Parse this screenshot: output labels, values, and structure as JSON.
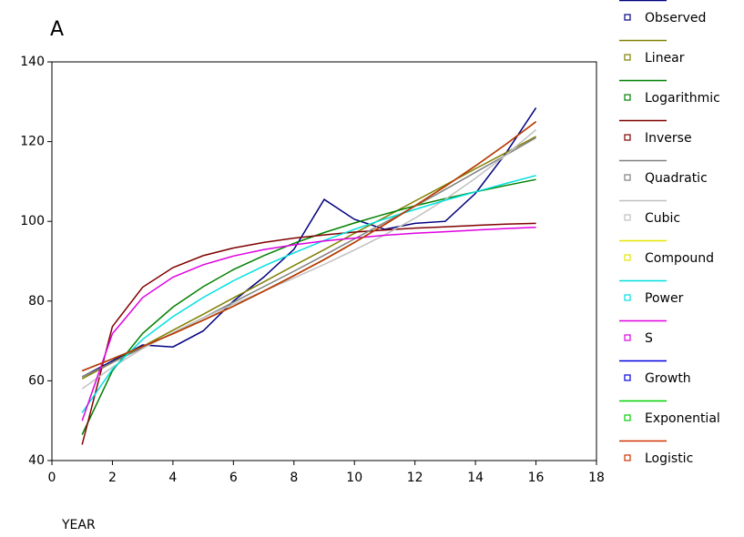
{
  "chart_data": {
    "type": "line",
    "title": "A",
    "x_label": "YEAR",
    "x": [
      1,
      2,
      3,
      4,
      5,
      6,
      7,
      8,
      9,
      10,
      11,
      12,
      13,
      14,
      15,
      16
    ],
    "xlim": [
      0,
      18
    ],
    "xticks": [
      0,
      2,
      4,
      6,
      8,
      10,
      12,
      14,
      16,
      18
    ],
    "ylim": [
      40,
      140
    ],
    "yticks": [
      40,
      60,
      80,
      100,
      120,
      140
    ],
    "series": [
      {
        "name": "Observed",
        "color": "#000080",
        "values": [
          61,
          65,
          69,
          68.5,
          72.5,
          80,
          86,
          93,
          105.5,
          100.5,
          98,
          99.5,
          100,
          107,
          117,
          128.5
        ]
      },
      {
        "name": "Linear",
        "color": "#808000",
        "values": [
          60.5,
          64.6,
          68.6,
          72.7,
          76.7,
          80.8,
          84.8,
          88.9,
          92.9,
          97.0,
          101.0,
          105.1,
          109.1,
          113.2,
          117.2,
          121.3
        ]
      },
      {
        "name": "Logarithmic",
        "color": "#008000",
        "values": [
          46.5,
          62.5,
          71.9,
          78.5,
          83.6,
          87.9,
          91.4,
          94.5,
          97.2,
          99.6,
          101.8,
          103.9,
          105.7,
          107.4,
          109.0,
          110.5
        ]
      },
      {
        "name": "Inverse",
        "color": "#800000",
        "values": [
          44.0,
          73.6,
          83.5,
          88.4,
          91.4,
          93.3,
          94.7,
          95.8,
          96.6,
          97.3,
          97.8,
          98.3,
          98.6,
          99.0,
          99.3,
          99.5
        ]
      },
      {
        "name": "Quadratic",
        "color": "#808080",
        "values": [
          61.0,
          64.6,
          68.3,
          72.0,
          75.8,
          79.7,
          83.6,
          87.5,
          91.5,
          95.6,
          99.7,
          103.8,
          108.0,
          112.3,
          116.6,
          121.0
        ]
      },
      {
        "name": "Cubic",
        "color": "#c0c0c0",
        "values": [
          58.0,
          63.4,
          68.1,
          72.1,
          75.8,
          79.2,
          82.5,
          85.8,
          89.2,
          92.8,
          96.6,
          100.8,
          105.5,
          110.8,
          116.6,
          123.0
        ]
      },
      {
        "name": "Compound",
        "color": "#e6e600",
        "values": [
          62.5,
          65.5,
          68.6,
          71.8,
          75.2,
          78.7,
          82.5,
          86.4,
          90.4,
          94.7,
          99.2,
          103.9,
          108.8,
          113.9,
          119.3,
          125.0
        ]
      },
      {
        "name": "Power",
        "color": "#00e0e0",
        "values": [
          52.0,
          62.9,
          70.4,
          76.1,
          80.9,
          85.1,
          88.8,
          92.1,
          95.2,
          98.0,
          100.6,
          103.0,
          105.3,
          107.4,
          109.5,
          111.5
        ]
      },
      {
        "name": "S",
        "color": "#e000e0",
        "values": [
          50.0,
          71.8,
          80.9,
          86.0,
          89.1,
          91.3,
          92.9,
          94.1,
          95.1,
          95.8,
          96.5,
          97.0,
          97.4,
          97.8,
          98.2,
          98.5
        ]
      },
      {
        "name": "Growth",
        "color": "#0000e0",
        "values": [
          62.5,
          65.5,
          68.6,
          71.8,
          75.2,
          78.7,
          82.5,
          86.4,
          90.4,
          94.7,
          99.2,
          103.9,
          108.8,
          113.9,
          119.3,
          125.0
        ]
      },
      {
        "name": "Exponential",
        "color": "#00d000",
        "values": [
          62.5,
          65.5,
          68.6,
          71.8,
          75.2,
          78.7,
          82.5,
          86.4,
          90.4,
          94.7,
          99.2,
          103.9,
          108.8,
          113.9,
          119.3,
          125.0
        ]
      },
      {
        "name": "Logistic",
        "color": "#d03000",
        "values": [
          62.5,
          65.5,
          68.6,
          71.8,
          75.2,
          78.7,
          82.5,
          86.4,
          90.4,
          94.7,
          99.2,
          103.9,
          108.8,
          113.9,
          119.3,
          125.0
        ]
      }
    ]
  }
}
